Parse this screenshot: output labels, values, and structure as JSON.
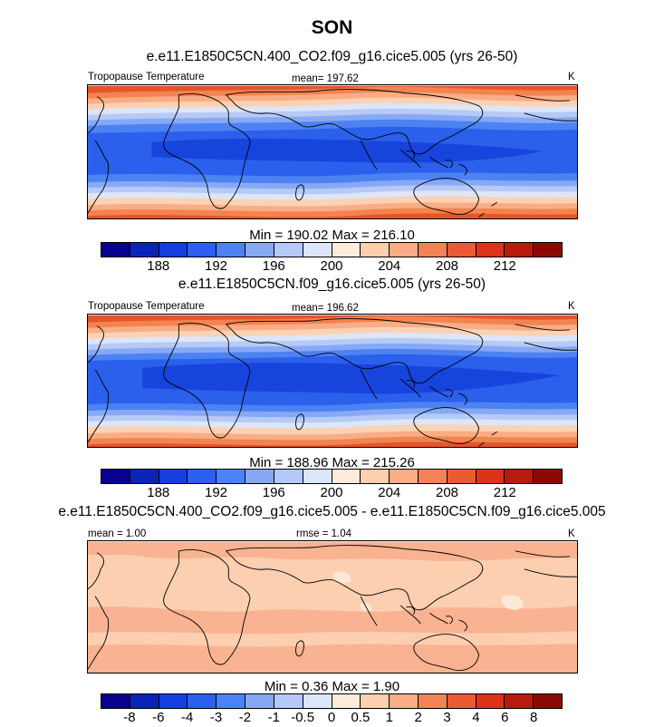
{
  "season": "SON",
  "panels": [
    {
      "case_title": "e.e11.E1850C5CN.400_CO2.f09_g16.cice5.005 (yrs 26-50)",
      "left_label": "Tropopause Temperature",
      "center_label": "mean= 197.62",
      "units": "K",
      "minmax": "Min = 190.02 Max = 216.10"
    },
    {
      "case_title": "e.e11.E1850C5CN.f09_g16.cice5.005 (yrs 26-50)",
      "left_label": "Tropopause Temperature",
      "center_label": "mean= 196.62",
      "units": "K",
      "minmax": "Min = 188.96 Max = 215.26"
    },
    {
      "case_title": "e.e11.E1850C5CN.400_CO2.f09_g16.cice5.005 - e.e11.E1850C5CN.f09_g16.cice5.005",
      "left_label": "mean =   1.00",
      "center_label": "rmse =   1.04",
      "units": "K",
      "minmax": "Min =   0.36 Max =   1.90"
    }
  ],
  "colorbar_abs": {
    "colors": [
      "#08008f",
      "#0a23b8",
      "#1240e0",
      "#2a5ff0",
      "#4c82f7",
      "#86a8f5",
      "#b4c9f7",
      "#dce6fa",
      "#fdebdb",
      "#fccfae",
      "#f9ac86",
      "#f38357",
      "#ec5a32",
      "#dd3319",
      "#b81b0e",
      "#8c0a04"
    ],
    "labels": [
      "188",
      "192",
      "196",
      "200",
      "204",
      "208",
      "212"
    ]
  },
  "colorbar_diff": {
    "colors": [
      "#08008f",
      "#0a23b8",
      "#1240e0",
      "#2a5ff0",
      "#4c82f7",
      "#86a8f5",
      "#b4c9f7",
      "#dce6fa",
      "#fdebdb",
      "#fccfae",
      "#f9ac86",
      "#f38357",
      "#ec5a32",
      "#dd3319",
      "#b81b0e",
      "#8c0a04"
    ],
    "labels": [
      "-8",
      "-6",
      "-4",
      "-3",
      "-2",
      "-1",
      "-0.5",
      "0",
      "0.5",
      "1",
      "2",
      "3",
      "4",
      "6",
      "8"
    ]
  },
  "field_colors": {
    "abs": {
      "pole": "#e4552c",
      "p2": "#f3834f",
      "p3": "#f9ad86",
      "p4": "#fbd2b4",
      "p5": "#dde6f8",
      "p6": "#b6caf6",
      "p7": "#87a9f5",
      "p8": "#4d82f2",
      "p9": "#2a60ec",
      "core": "#1744dc"
    },
    "diff": {
      "base": "#fbcfb0",
      "mid": "#f9b392",
      "light": "#fde8d7"
    }
  }
}
